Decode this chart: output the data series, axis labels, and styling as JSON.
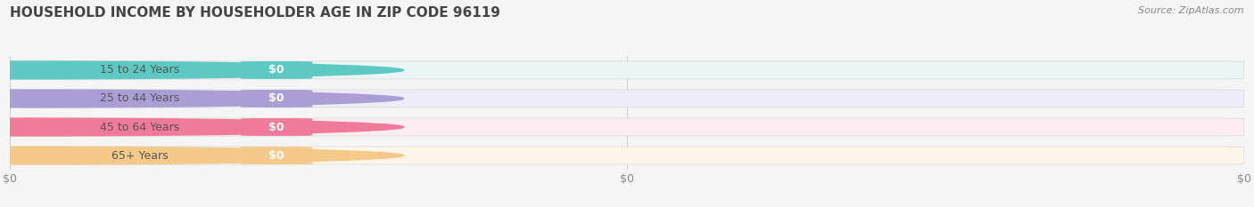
{
  "title": "HOUSEHOLD INCOME BY HOUSEHOLDER AGE IN ZIP CODE 96119",
  "source": "Source: ZipAtlas.com",
  "categories": [
    "15 to 24 Years",
    "25 to 44 Years",
    "45 to 64 Years",
    "65+ Years"
  ],
  "values": [
    0,
    0,
    0,
    0
  ],
  "bar_colors": [
    "#5ec8c2",
    "#a99fd4",
    "#f07a99",
    "#f5c98a"
  ],
  "bar_bg_colors": [
    "#eaf6f6",
    "#eeecf8",
    "#fdedf2",
    "#fef6e8"
  ],
  "white_pill_color": "#ffffff",
  "value_label": "$0",
  "x_tick_labels": [
    "$0",
    "$0",
    "$0"
  ],
  "x_tick_positions": [
    0.0,
    0.5,
    1.0
  ],
  "background_color": "#f5f5f5",
  "title_fontsize": 11,
  "label_fontsize": 9,
  "source_fontsize": 8,
  "xlim": [
    0.0,
    1.0
  ],
  "bar_height": 0.62
}
